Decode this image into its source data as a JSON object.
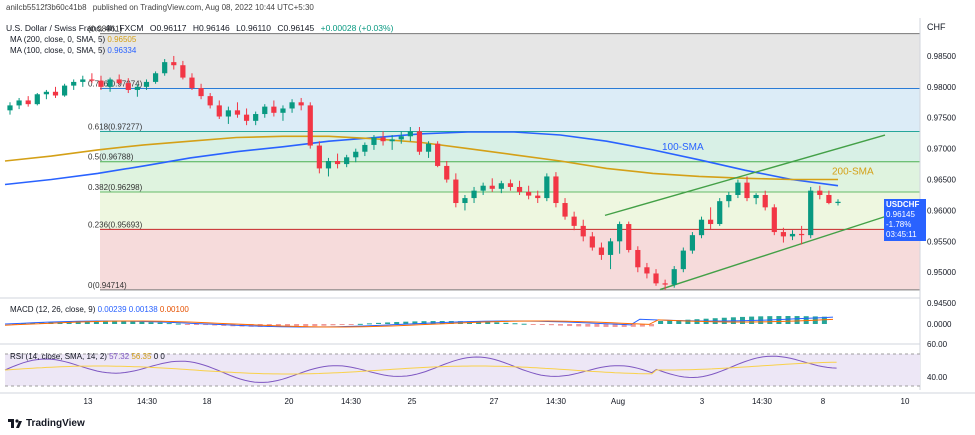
{
  "header": {
    "user": "anilcb5512f3b60c41b8",
    "published": "published on TradingView.com, Aug 08, 2022 10:44 UTC+5:30"
  },
  "symbol": {
    "name": "U.S. Dollar / Swiss Franc, 4h, FXCM",
    "o": "O0.96117",
    "h": "H0.96146",
    "l": "L0.96110",
    "c": "C0.96145",
    "chg": "+0.00028 (+0.03%)"
  },
  "ma_legend": [
    {
      "label": "MA (200, close, 0, SMA, 5)",
      "value": "0.96505",
      "color": "#d4a017"
    },
    {
      "label": "MA (100, close, 0, SMA, 5)",
      "value": "0.96334",
      "color": "#2962ff"
    }
  ],
  "macd_legend": {
    "label": "MACD (12, 26, close, 9)",
    "v1": "0.00239",
    "v2": "0.00138",
    "v3": "0.00100"
  },
  "rsi_legend": {
    "label": "RSI (14, close, SMA, 14, 2)",
    "v1": "57.32",
    "v2": "56.35",
    "v3": "0",
    "v4": "0"
  },
  "currency_label": "CHF",
  "price_tag": {
    "symbol": "USDCHF",
    "price": "0.96145",
    "change": "-1.78%",
    "countdown": "03:45:11"
  },
  "annotations": {
    "sma100": "100-SMA",
    "sma200": "200-SMA"
  },
  "logo": "TradingView",
  "chart_data": {
    "type": "candlestick",
    "price_range": [
      0.9468,
      0.9892
    ],
    "y_ticks": [
      "0.98500",
      "0.98000",
      "0.97500",
      "0.97000",
      "0.96500",
      "0.96000",
      "0.95500",
      "0.95000",
      "0.94500"
    ],
    "y_tick_values": [
      0.985,
      0.98,
      0.975,
      0.97,
      0.965,
      0.96,
      0.955,
      0.95,
      0.945
    ],
    "x_ticks": [
      "13",
      "14:30",
      "18",
      "20",
      "14:30",
      "25",
      "27",
      "14:30",
      "Aug",
      "3",
      "14:30",
      "8",
      "10"
    ],
    "fib_levels": [
      {
        "label": "0.786(0.97974)",
        "value": 0.97974
      },
      {
        "label": "0.618(0.97277)",
        "value": 0.97277
      },
      {
        "label": "0.5(0.96788)",
        "value": 0.96788
      },
      {
        "label": "0.382(0.96298)",
        "value": 0.96298
      },
      {
        "label": "0.236(0.95693)",
        "value": 0.95693
      },
      {
        "label": "0(0.94714)",
        "value": 0.94714
      },
      {
        "label": "(0.98861)",
        "value": 0.98861
      }
    ],
    "fib_zones": [
      {
        "from": 0.98861,
        "to": 0.97974,
        "color": "#e6e6e6"
      },
      {
        "from": 0.97974,
        "to": 0.97277,
        "color": "#dcecf7"
      },
      {
        "from": 0.97277,
        "to": 0.96788,
        "color": "#d8f0e6"
      },
      {
        "from": 0.96788,
        "to": 0.96298,
        "color": "#dff3df"
      },
      {
        "from": 0.96298,
        "to": 0.95693,
        "color": "#eef7e0"
      },
      {
        "from": 0.95693,
        "to": 0.94714,
        "color": "#f6dbdb"
      }
    ],
    "candles": [
      [
        0.9762,
        0.9775,
        0.9755,
        0.977
      ],
      [
        0.977,
        0.9782,
        0.9764,
        0.9778
      ],
      [
        0.9778,
        0.9785,
        0.9768,
        0.9772
      ],
      [
        0.9772,
        0.979,
        0.977,
        0.9788
      ],
      [
        0.9788,
        0.9795,
        0.978,
        0.9792
      ],
      [
        0.9792,
        0.98,
        0.9782,
        0.9786
      ],
      [
        0.9786,
        0.9805,
        0.9784,
        0.9802
      ],
      [
        0.9802,
        0.9812,
        0.9795,
        0.9808
      ],
      [
        0.9808,
        0.9818,
        0.98,
        0.9812
      ],
      [
        0.9812,
        0.9822,
        0.9806,
        0.981
      ],
      [
        0.981,
        0.9818,
        0.9795,
        0.98
      ],
      [
        0.98,
        0.9815,
        0.9792,
        0.9812
      ],
      [
        0.9812,
        0.982,
        0.9803,
        0.9806
      ],
      [
        0.9806,
        0.9814,
        0.979,
        0.9795
      ],
      [
        0.9795,
        0.9804,
        0.9784,
        0.98
      ],
      [
        0.98,
        0.9812,
        0.9795,
        0.9808
      ],
      [
        0.9808,
        0.9825,
        0.9805,
        0.9822
      ],
      [
        0.9822,
        0.9845,
        0.9818,
        0.984
      ],
      [
        0.984,
        0.985,
        0.9828,
        0.9835
      ],
      [
        0.9835,
        0.9842,
        0.9812,
        0.9815
      ],
      [
        0.9815,
        0.9822,
        0.9795,
        0.9798
      ],
      [
        0.9798,
        0.9805,
        0.978,
        0.9785
      ],
      [
        0.9785,
        0.979,
        0.9765,
        0.977
      ],
      [
        0.977,
        0.9778,
        0.9748,
        0.9752
      ],
      [
        0.9752,
        0.9768,
        0.974,
        0.9762
      ],
      [
        0.9762,
        0.9775,
        0.975,
        0.9755
      ],
      [
        0.9755,
        0.9765,
        0.9738,
        0.9745
      ],
      [
        0.9745,
        0.976,
        0.9738,
        0.9756
      ],
      [
        0.9756,
        0.9772,
        0.975,
        0.9768
      ],
      [
        0.9768,
        0.9778,
        0.9752,
        0.9758
      ],
      [
        0.9758,
        0.977,
        0.9745,
        0.9765
      ],
      [
        0.9765,
        0.978,
        0.9758,
        0.9775
      ],
      [
        0.9775,
        0.9782,
        0.9762,
        0.977
      ],
      [
        0.977,
        0.9775,
        0.97,
        0.9705
      ],
      [
        0.9705,
        0.9712,
        0.966,
        0.9668
      ],
      [
        0.9668,
        0.9685,
        0.9655,
        0.968
      ],
      [
        0.968,
        0.9692,
        0.9668,
        0.9675
      ],
      [
        0.9675,
        0.969,
        0.967,
        0.9686
      ],
      [
        0.9686,
        0.97,
        0.9678,
        0.9695
      ],
      [
        0.9695,
        0.971,
        0.9688,
        0.9706
      ],
      [
        0.9706,
        0.9722,
        0.9698,
        0.9718
      ],
      [
        0.9718,
        0.9728,
        0.9705,
        0.9712
      ],
      [
        0.9712,
        0.9722,
        0.9698,
        0.9715
      ],
      [
        0.9715,
        0.9728,
        0.9708,
        0.972
      ],
      [
        0.972,
        0.9735,
        0.9712,
        0.9728
      ],
      [
        0.9728,
        0.9735,
        0.969,
        0.9695
      ],
      [
        0.9695,
        0.9712,
        0.9685,
        0.9708
      ],
      [
        0.9708,
        0.9712,
        0.967,
        0.9672
      ],
      [
        0.9672,
        0.968,
        0.9645,
        0.965
      ],
      [
        0.965,
        0.966,
        0.9605,
        0.9612
      ],
      [
        0.9612,
        0.9625,
        0.96,
        0.962
      ],
      [
        0.962,
        0.9638,
        0.9612,
        0.9632
      ],
      [
        0.9632,
        0.9645,
        0.9625,
        0.964
      ],
      [
        0.964,
        0.9652,
        0.963,
        0.9635
      ],
      [
        0.9635,
        0.9648,
        0.9628,
        0.9644
      ],
      [
        0.9644,
        0.965,
        0.9632,
        0.9638
      ],
      [
        0.9638,
        0.9648,
        0.9625,
        0.963
      ],
      [
        0.963,
        0.964,
        0.9618,
        0.9624
      ],
      [
        0.9624,
        0.9632,
        0.9612,
        0.962
      ],
      [
        0.962,
        0.966,
        0.9615,
        0.9655
      ],
      [
        0.9655,
        0.9662,
        0.9605,
        0.9612
      ],
      [
        0.9612,
        0.962,
        0.9585,
        0.959
      ],
      [
        0.959,
        0.9598,
        0.9568,
        0.9575
      ],
      [
        0.9575,
        0.9585,
        0.955,
        0.9558
      ],
      [
        0.9558,
        0.9565,
        0.9535,
        0.954
      ],
      [
        0.954,
        0.9548,
        0.952,
        0.9528
      ],
      [
        0.9528,
        0.9555,
        0.9505,
        0.955
      ],
      [
        0.955,
        0.9582,
        0.953,
        0.9578
      ],
      [
        0.9578,
        0.9582,
        0.9532,
        0.9536
      ],
      [
        0.9536,
        0.9542,
        0.95,
        0.9508
      ],
      [
        0.9508,
        0.9515,
        0.949,
        0.9498
      ],
      [
        0.9498,
        0.9505,
        0.9478,
        0.9482
      ],
      [
        0.9482,
        0.9488,
        0.9472,
        0.948
      ],
      [
        0.948,
        0.951,
        0.9475,
        0.9505
      ],
      [
        0.9505,
        0.954,
        0.95,
        0.9535
      ],
      [
        0.9535,
        0.9565,
        0.953,
        0.956
      ],
      [
        0.956,
        0.959,
        0.9555,
        0.9585
      ],
      [
        0.9585,
        0.9605,
        0.957,
        0.9578
      ],
      [
        0.9578,
        0.962,
        0.9575,
        0.9615
      ],
      [
        0.9615,
        0.963,
        0.9605,
        0.9625
      ],
      [
        0.9625,
        0.965,
        0.962,
        0.9645
      ],
      [
        0.9645,
        0.9655,
        0.9615,
        0.962
      ],
      [
        0.962,
        0.9628,
        0.961,
        0.9625
      ],
      [
        0.9625,
        0.9632,
        0.96,
        0.9605
      ],
      [
        0.9605,
        0.961,
        0.956,
        0.9565
      ],
      [
        0.9565,
        0.9572,
        0.9548,
        0.9558
      ],
      [
        0.9558,
        0.9568,
        0.9552,
        0.9562
      ],
      [
        0.9562,
        0.9575,
        0.9545,
        0.956
      ],
      [
        0.956,
        0.9638,
        0.9555,
        0.9632
      ],
      [
        0.9632,
        0.964,
        0.9618,
        0.9625
      ],
      [
        0.9625,
        0.9632,
        0.961,
        0.9612
      ],
      [
        0.9612,
        0.9618,
        0.9608,
        0.9614
      ]
    ],
    "sma100": [
      0.9642,
      0.965,
      0.966,
      0.9672,
      0.9685,
      0.9695,
      0.9703,
      0.9712,
      0.9718,
      0.9724,
      0.9727,
      0.9727,
      0.9722,
      0.9712,
      0.9698,
      0.9682,
      0.9665,
      0.965,
      0.964
    ],
    "sma200": [
      0.968,
      0.9688,
      0.9698,
      0.9706,
      0.9712,
      0.9718,
      0.972,
      0.972,
      0.9716,
      0.971,
      0.97,
      0.969,
      0.968,
      0.9668,
      0.966,
      0.9655,
      0.9652,
      0.965,
      0.965
    ],
    "channel_upper": [
      [
        0.9592,
        0.966
      ],
      [
        0.9652,
        0.9722
      ]
    ],
    "channel_lower": [
      [
        0.947,
        0.9562
      ],
      [
        0.955,
        0.959
      ]
    ]
  }
}
